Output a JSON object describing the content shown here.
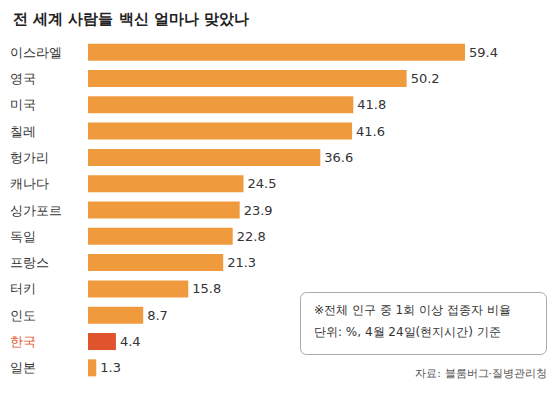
{
  "chart_data": {
    "type": "bar",
    "title": "전 세계 사람들 백신 얼마나 맞았나",
    "orientation": "horizontal",
    "categories": [
      "이스라엘",
      "영국",
      "미국",
      "칠레",
      "헝가리",
      "캐나다",
      "싱가포르",
      "독일",
      "프랑스",
      "터키",
      "인도",
      "한국",
      "일본"
    ],
    "values": [
      59.4,
      50.2,
      41.8,
      41.6,
      36.6,
      24.5,
      23.9,
      22.8,
      21.3,
      15.8,
      8.7,
      4.4,
      1.3
    ],
    "value_labels": [
      "59.4",
      "50.2",
      "41.8",
      "41.6",
      "36.6",
      "24.5",
      "23.9",
      "22.8",
      "21.3",
      "15.8",
      "8.7",
      "4.4",
      "1.3"
    ],
    "colors": [
      "#f09a3e",
      "#f09a3e",
      "#f09a3e",
      "#f09a3e",
      "#f09a3e",
      "#f09a3e",
      "#f09a3e",
      "#f09a3e",
      "#f09a3e",
      "#f09a3e",
      "#f09a3e",
      "#e0542b",
      "#f09a3e"
    ],
    "xlim": [
      0,
      72
    ],
    "data_labels": true,
    "tick_labels": "y",
    "grid": false,
    "annotations": [
      "※전체 인구 중 1회 이상 접종자 비율",
      "단위: %, 4월 24일(현지시간) 기준"
    ],
    "source": "자료: 블룸버그·질병관리청"
  }
}
